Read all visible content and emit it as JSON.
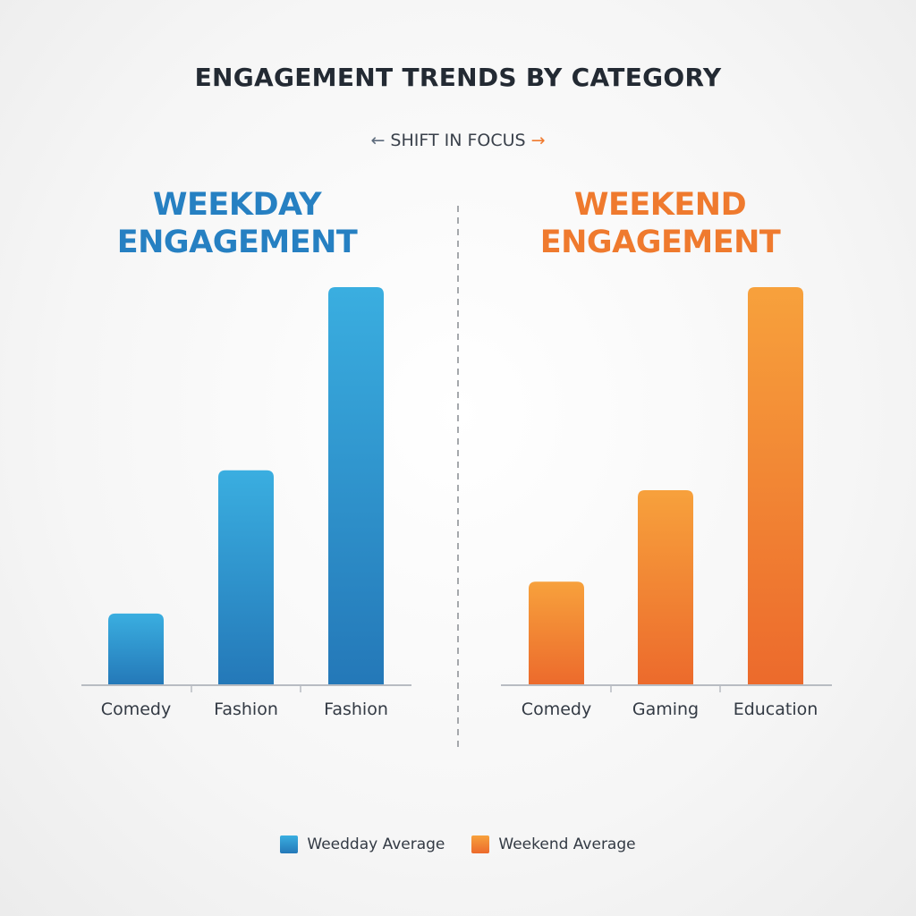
{
  "title": "ENGAGEMENT TRENDS BY CATEGORY",
  "subtitle": {
    "text": "SHIFT IN FOCUS",
    "left_arrow": "←",
    "right_arrow": "→"
  },
  "colors": {
    "weekday_light": "#3aaee0",
    "weekday_dark": "#2478b8",
    "weekend_light": "#f7a13c",
    "weekend_dark": "#ec6a2c",
    "weekday_heading": "#2680c2",
    "weekend_heading": "#ef7a2e",
    "right_arrow": "#f07a2e",
    "axis": "#b8bcc2",
    "divider": "#a5a8ac"
  },
  "panels": [
    {
      "heading_line1": "WEEKDAY",
      "heading_line2": "ENGAGEMENT"
    },
    {
      "heading_line1": "WEEKEND",
      "heading_line2": "ENGAGEMENT"
    }
  ],
  "legend": {
    "weekday": "Weedday Average",
    "weekend": "Weekend Average"
  },
  "chart_data": [
    {
      "type": "bar",
      "categories": [
        "Comedy",
        "Fashion",
        "Fashion"
      ],
      "series": [
        {
          "name": "Weedday Average",
          "values": [
            18,
            54,
            100
          ]
        }
      ],
      "ylim": [
        0,
        100
      ],
      "grid": false
    },
    {
      "type": "bar",
      "categories": [
        "Comedy",
        "Gaming",
        "Education"
      ],
      "series": [
        {
          "name": "Weekend Average",
          "values": [
            26,
            49,
            100
          ]
        }
      ],
      "ylim": [
        0,
        100
      ],
      "grid": false
    }
  ]
}
